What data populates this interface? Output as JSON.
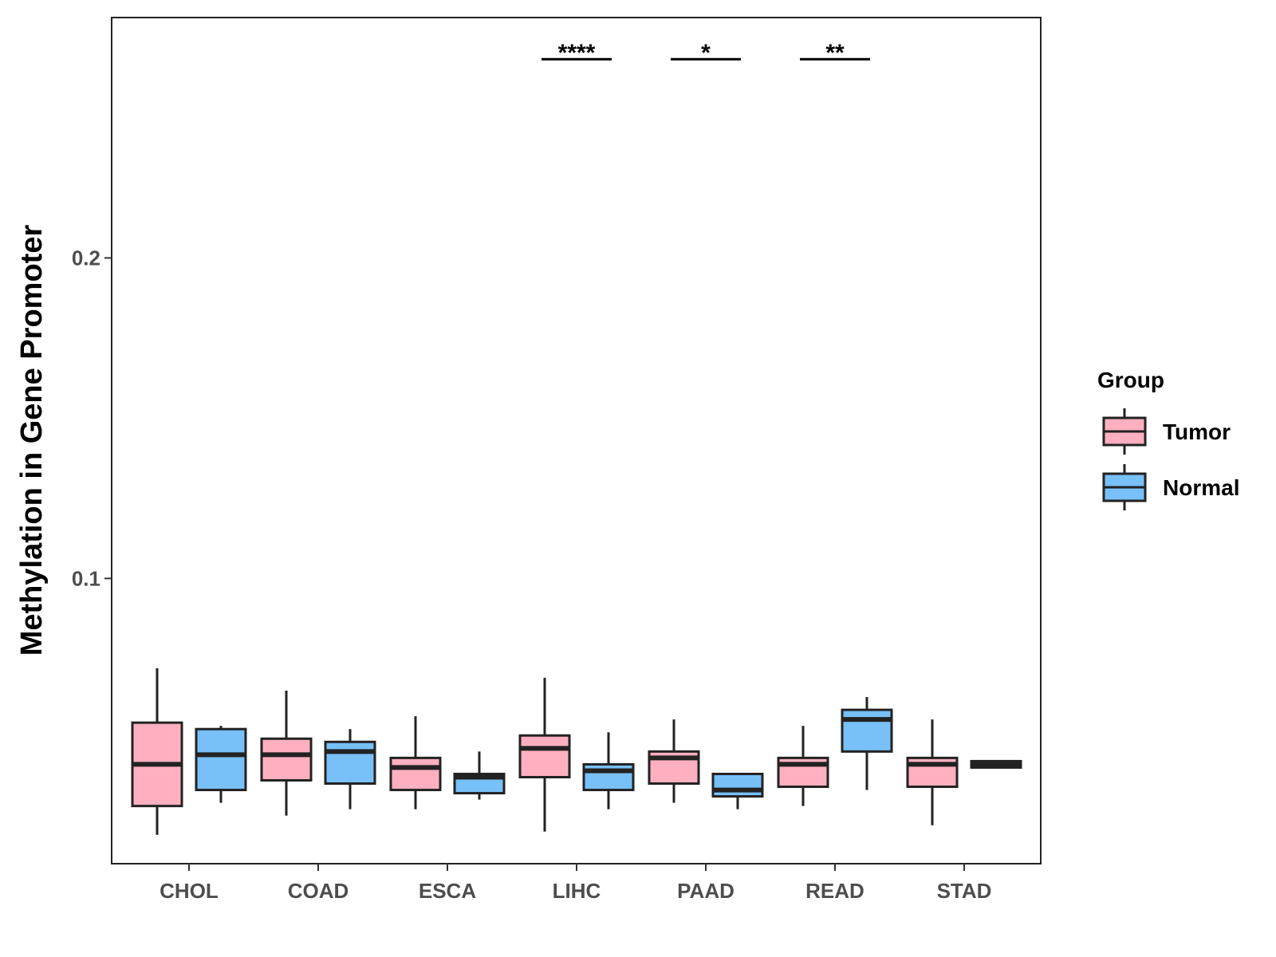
{
  "chart_data": {
    "type": "boxplot",
    "title": "",
    "xlabel": "",
    "ylabel": "Methylation in Gene Promoter",
    "ylim": [
      0.011,
      0.275
    ],
    "yticks": [
      0.1,
      0.2
    ],
    "ytick_labels": [
      "0.1",
      "0.2"
    ],
    "categories": [
      "CHOL",
      "COAD",
      "ESCA",
      "LIHC",
      "PAAD",
      "READ",
      "STAD"
    ],
    "legend": {
      "title": "Group",
      "position": "right",
      "entries": [
        {
          "name": "Tumor",
          "color": "#FFB0C0"
        },
        {
          "name": "Normal",
          "color": "#78C0F8"
        }
      ]
    },
    "series": [
      {
        "name": "Tumor",
        "color": "#FFB0C0",
        "boxes": [
          {
            "category": "CHOL",
            "min": 0.02,
            "q1": 0.029,
            "median": 0.042,
            "q3": 0.055,
            "max": 0.072
          },
          {
            "category": "COAD",
            "min": 0.026,
            "q1": 0.037,
            "median": 0.045,
            "q3": 0.05,
            "max": 0.065
          },
          {
            "category": "ESCA",
            "min": 0.028,
            "q1": 0.034,
            "median": 0.041,
            "q3": 0.044,
            "max": 0.057
          },
          {
            "category": "LIHC",
            "min": 0.021,
            "q1": 0.038,
            "median": 0.047,
            "q3": 0.051,
            "max": 0.069
          },
          {
            "category": "PAAD",
            "min": 0.03,
            "q1": 0.036,
            "median": 0.044,
            "q3": 0.046,
            "max": 0.056
          },
          {
            "category": "READ",
            "min": 0.029,
            "q1": 0.035,
            "median": 0.042,
            "q3": 0.044,
            "max": 0.054
          },
          {
            "category": "STAD",
            "min": 0.023,
            "q1": 0.035,
            "median": 0.042,
            "q3": 0.044,
            "max": 0.056
          }
        ]
      },
      {
        "name": "Normal",
        "color": "#78C0F8",
        "boxes": [
          {
            "category": "CHOL",
            "min": 0.03,
            "q1": 0.034,
            "median": 0.045,
            "q3": 0.053,
            "max": 0.054
          },
          {
            "category": "COAD",
            "min": 0.028,
            "q1": 0.036,
            "median": 0.046,
            "q3": 0.049,
            "max": 0.053
          },
          {
            "category": "ESCA",
            "min": 0.031,
            "q1": 0.033,
            "median": 0.038,
            "q3": 0.039,
            "max": 0.046
          },
          {
            "category": "LIHC",
            "min": 0.028,
            "q1": 0.034,
            "median": 0.04,
            "q3": 0.042,
            "max": 0.052
          },
          {
            "category": "PAAD",
            "min": 0.028,
            "q1": 0.032,
            "median": 0.034,
            "q3": 0.039,
            "max": 0.039
          },
          {
            "category": "READ",
            "min": 0.034,
            "q1": 0.046,
            "median": 0.056,
            "q3": 0.059,
            "max": 0.063
          },
          {
            "category": "STAD",
            "min": 0.041,
            "q1": 0.041,
            "median": 0.042,
            "q3": 0.043,
            "max": 0.043
          }
        ]
      }
    ],
    "significance": [
      {
        "category": "LIHC",
        "label": "****",
        "y": 0.262
      },
      {
        "category": "PAAD",
        "label": "*",
        "y": 0.262
      },
      {
        "category": "READ",
        "label": "**",
        "y": 0.262
      }
    ]
  }
}
